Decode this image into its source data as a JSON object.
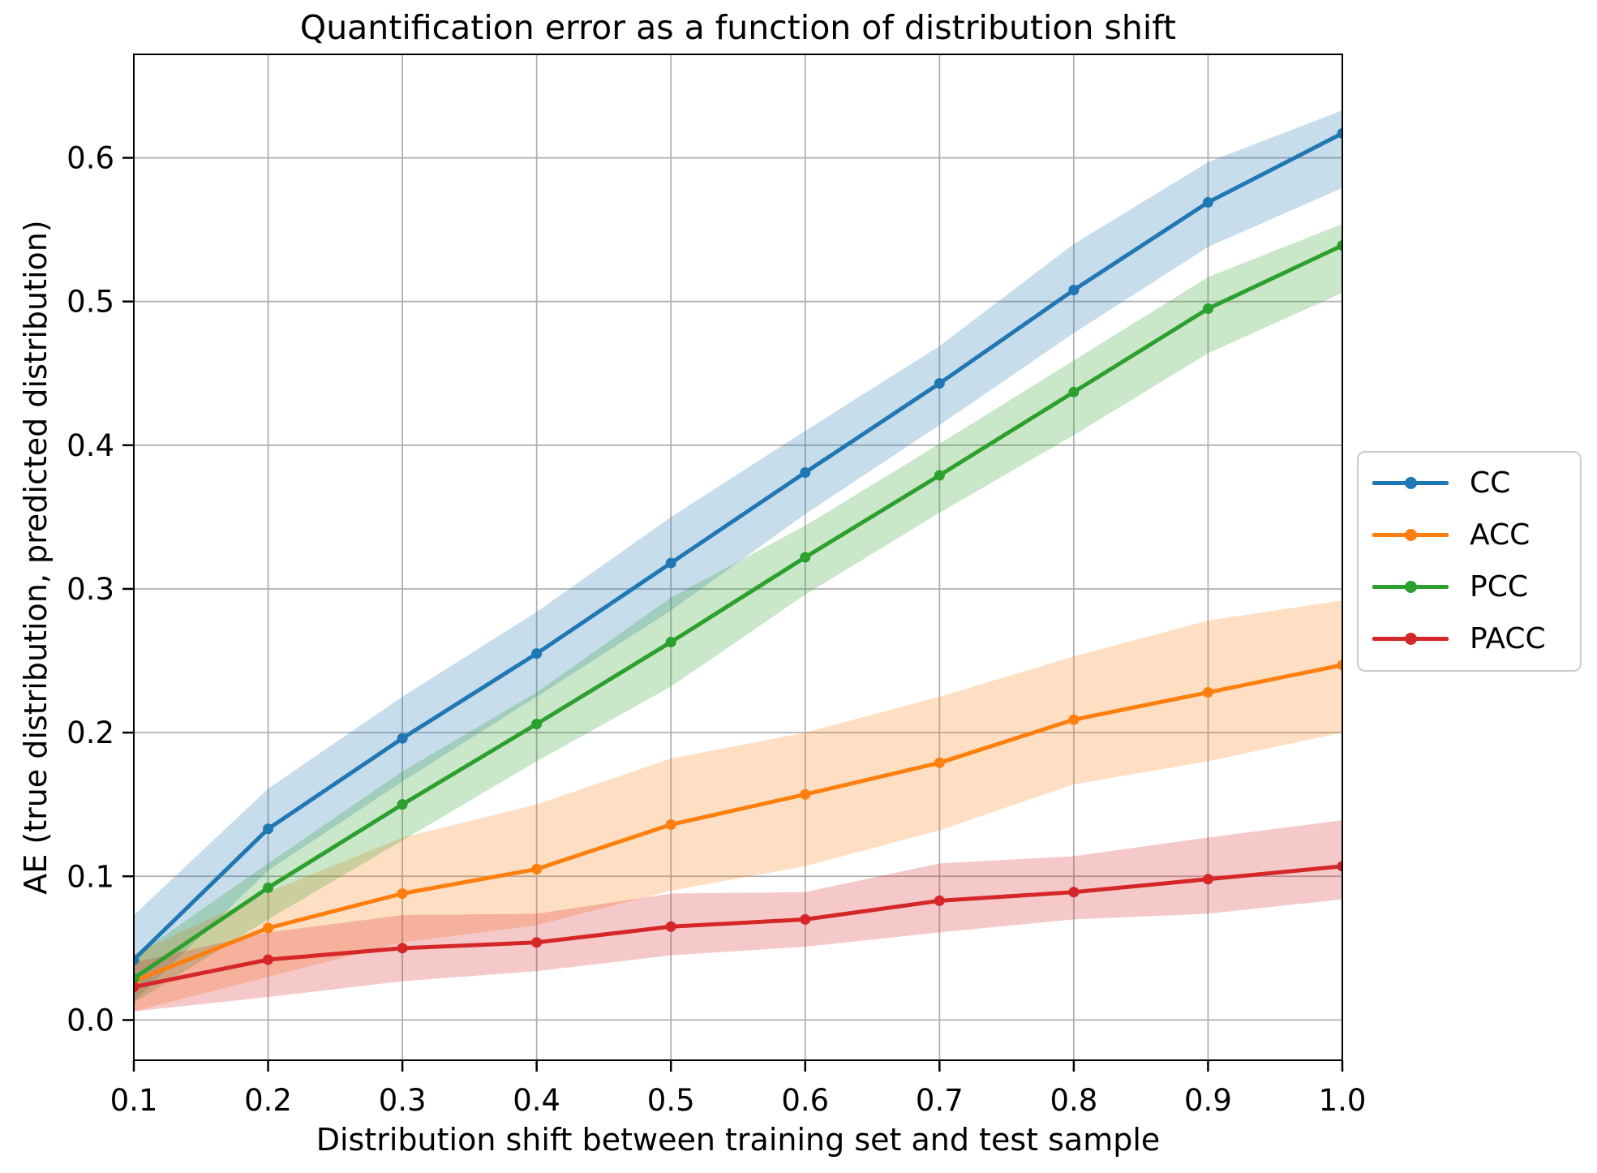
{
  "chart_data": {
    "type": "line",
    "title": "Quantification error as a function of distribution shift",
    "xlabel": "Distribution shift between training set and test sample",
    "ylabel": "AE (true distribution, predicted distribution)",
    "x": [
      0.1,
      0.2,
      0.3,
      0.4,
      0.5,
      0.6,
      0.7,
      0.8,
      0.9,
      1.0
    ],
    "x_tick_labels": [
      "0.1",
      "0.2",
      "0.3",
      "0.4",
      "0.5",
      "0.6",
      "0.7",
      "0.8",
      "0.9",
      "1.0"
    ],
    "y_ticks": [
      0.0,
      0.1,
      0.2,
      0.3,
      0.4,
      0.5,
      0.6
    ],
    "y_tick_labels": [
      "0.0",
      "0.1",
      "0.2",
      "0.3",
      "0.4",
      "0.5",
      "0.6"
    ],
    "xlim": [
      0.1,
      1.0
    ],
    "ylim": [
      -0.028,
      0.672
    ],
    "grid": true,
    "grid_color": "#b0b0b0",
    "spine_color": "#000000",
    "band_alpha": 0.25,
    "legend_position": "center-right-outside",
    "series": [
      {
        "name": "CC",
        "color": "#1f77b4",
        "values": [
          0.042,
          0.133,
          0.196,
          0.255,
          0.318,
          0.381,
          0.443,
          0.508,
          0.569,
          0.617
        ],
        "band_lower": [
          0.013,
          0.104,
          0.166,
          0.225,
          0.285,
          0.352,
          0.414,
          0.478,
          0.538,
          0.579
        ],
        "band_upper": [
          0.073,
          0.161,
          0.225,
          0.284,
          0.35,
          0.41,
          0.469,
          0.54,
          0.597,
          0.633
        ]
      },
      {
        "name": "ACC",
        "color": "#ff7f0e",
        "values": [
          0.027,
          0.064,
          0.088,
          0.105,
          0.136,
          0.157,
          0.179,
          0.209,
          0.228,
          0.247
        ],
        "band_lower": [
          0.006,
          0.03,
          0.054,
          0.066,
          0.09,
          0.107,
          0.132,
          0.164,
          0.18,
          0.2
        ],
        "band_upper": [
          0.046,
          0.089,
          0.127,
          0.15,
          0.182,
          0.2,
          0.225,
          0.253,
          0.278,
          0.292
        ]
      },
      {
        "name": "PCC",
        "color": "#2ca02c",
        "values": [
          0.029,
          0.092,
          0.15,
          0.206,
          0.263,
          0.322,
          0.379,
          0.437,
          0.495,
          0.539
        ],
        "band_lower": [
          0.012,
          0.07,
          0.125,
          0.18,
          0.232,
          0.296,
          0.353,
          0.407,
          0.464,
          0.506
        ],
        "band_upper": [
          0.044,
          0.109,
          0.173,
          0.228,
          0.294,
          0.344,
          0.401,
          0.459,
          0.517,
          0.554
        ]
      },
      {
        "name": "PACC",
        "color": "#d62728",
        "values": [
          0.023,
          0.042,
          0.05,
          0.054,
          0.065,
          0.07,
          0.083,
          0.089,
          0.098,
          0.107
        ],
        "band_lower": [
          0.006,
          0.016,
          0.027,
          0.034,
          0.045,
          0.051,
          0.061,
          0.07,
          0.074,
          0.084
        ],
        "band_upper": [
          0.04,
          0.061,
          0.073,
          0.074,
          0.088,
          0.089,
          0.109,
          0.114,
          0.127,
          0.139
        ]
      }
    ]
  }
}
